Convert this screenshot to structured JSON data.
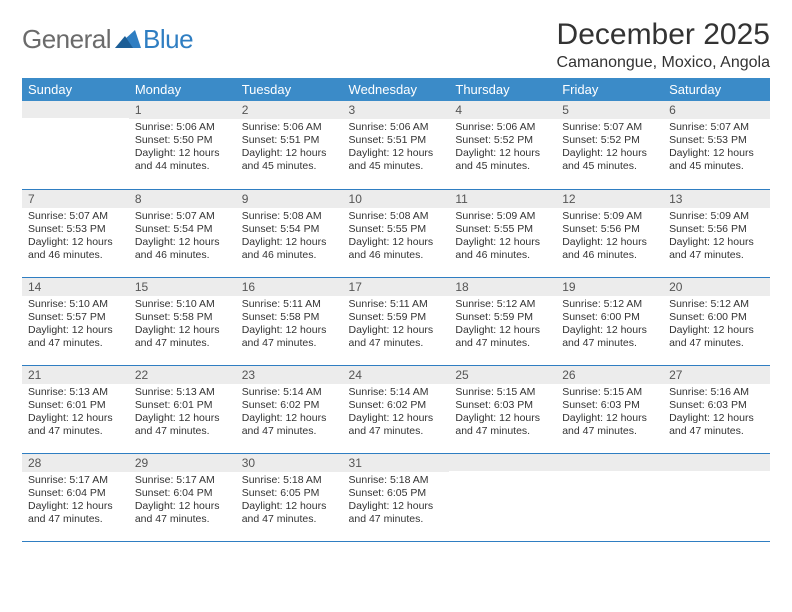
{
  "logo": {
    "general": "General",
    "blue": "Blue"
  },
  "title": "December 2025",
  "location": "Camanongue, Moxico, Angola",
  "colors": {
    "header_bg": "#3b8bc8",
    "accent": "#2f7ec2",
    "daynum_bg": "#ececec",
    "text": "#333333",
    "logo_gray": "#6b6b6b"
  },
  "day_headers": [
    "Sunday",
    "Monday",
    "Tuesday",
    "Wednesday",
    "Thursday",
    "Friday",
    "Saturday"
  ],
  "weeks": [
    [
      null,
      {
        "n": "1",
        "sunrise": "5:06 AM",
        "sunset": "5:50 PM",
        "daylight": "12 hours and 44 minutes."
      },
      {
        "n": "2",
        "sunrise": "5:06 AM",
        "sunset": "5:51 PM",
        "daylight": "12 hours and 45 minutes."
      },
      {
        "n": "3",
        "sunrise": "5:06 AM",
        "sunset": "5:51 PM",
        "daylight": "12 hours and 45 minutes."
      },
      {
        "n": "4",
        "sunrise": "5:06 AM",
        "sunset": "5:52 PM",
        "daylight": "12 hours and 45 minutes."
      },
      {
        "n": "5",
        "sunrise": "5:07 AM",
        "sunset": "5:52 PM",
        "daylight": "12 hours and 45 minutes."
      },
      {
        "n": "6",
        "sunrise": "5:07 AM",
        "sunset": "5:53 PM",
        "daylight": "12 hours and 45 minutes."
      }
    ],
    [
      {
        "n": "7",
        "sunrise": "5:07 AM",
        "sunset": "5:53 PM",
        "daylight": "12 hours and 46 minutes."
      },
      {
        "n": "8",
        "sunrise": "5:07 AM",
        "sunset": "5:54 PM",
        "daylight": "12 hours and 46 minutes."
      },
      {
        "n": "9",
        "sunrise": "5:08 AM",
        "sunset": "5:54 PM",
        "daylight": "12 hours and 46 minutes."
      },
      {
        "n": "10",
        "sunrise": "5:08 AM",
        "sunset": "5:55 PM",
        "daylight": "12 hours and 46 minutes."
      },
      {
        "n": "11",
        "sunrise": "5:09 AM",
        "sunset": "5:55 PM",
        "daylight": "12 hours and 46 minutes."
      },
      {
        "n": "12",
        "sunrise": "5:09 AM",
        "sunset": "5:56 PM",
        "daylight": "12 hours and 46 minutes."
      },
      {
        "n": "13",
        "sunrise": "5:09 AM",
        "sunset": "5:56 PM",
        "daylight": "12 hours and 47 minutes."
      }
    ],
    [
      {
        "n": "14",
        "sunrise": "5:10 AM",
        "sunset": "5:57 PM",
        "daylight": "12 hours and 47 minutes."
      },
      {
        "n": "15",
        "sunrise": "5:10 AM",
        "sunset": "5:58 PM",
        "daylight": "12 hours and 47 minutes."
      },
      {
        "n": "16",
        "sunrise": "5:11 AM",
        "sunset": "5:58 PM",
        "daylight": "12 hours and 47 minutes."
      },
      {
        "n": "17",
        "sunrise": "5:11 AM",
        "sunset": "5:59 PM",
        "daylight": "12 hours and 47 minutes."
      },
      {
        "n": "18",
        "sunrise": "5:12 AM",
        "sunset": "5:59 PM",
        "daylight": "12 hours and 47 minutes."
      },
      {
        "n": "19",
        "sunrise": "5:12 AM",
        "sunset": "6:00 PM",
        "daylight": "12 hours and 47 minutes."
      },
      {
        "n": "20",
        "sunrise": "5:12 AM",
        "sunset": "6:00 PM",
        "daylight": "12 hours and 47 minutes."
      }
    ],
    [
      {
        "n": "21",
        "sunrise": "5:13 AM",
        "sunset": "6:01 PM",
        "daylight": "12 hours and 47 minutes."
      },
      {
        "n": "22",
        "sunrise": "5:13 AM",
        "sunset": "6:01 PM",
        "daylight": "12 hours and 47 minutes."
      },
      {
        "n": "23",
        "sunrise": "5:14 AM",
        "sunset": "6:02 PM",
        "daylight": "12 hours and 47 minutes."
      },
      {
        "n": "24",
        "sunrise": "5:14 AM",
        "sunset": "6:02 PM",
        "daylight": "12 hours and 47 minutes."
      },
      {
        "n": "25",
        "sunrise": "5:15 AM",
        "sunset": "6:03 PM",
        "daylight": "12 hours and 47 minutes."
      },
      {
        "n": "26",
        "sunrise": "5:15 AM",
        "sunset": "6:03 PM",
        "daylight": "12 hours and 47 minutes."
      },
      {
        "n": "27",
        "sunrise": "5:16 AM",
        "sunset": "6:03 PM",
        "daylight": "12 hours and 47 minutes."
      }
    ],
    [
      {
        "n": "28",
        "sunrise": "5:17 AM",
        "sunset": "6:04 PM",
        "daylight": "12 hours and 47 minutes."
      },
      {
        "n": "29",
        "sunrise": "5:17 AM",
        "sunset": "6:04 PM",
        "daylight": "12 hours and 47 minutes."
      },
      {
        "n": "30",
        "sunrise": "5:18 AM",
        "sunset": "6:05 PM",
        "daylight": "12 hours and 47 minutes."
      },
      {
        "n": "31",
        "sunrise": "5:18 AM",
        "sunset": "6:05 PM",
        "daylight": "12 hours and 47 minutes."
      },
      null,
      null,
      null
    ]
  ],
  "labels": {
    "sunrise": "Sunrise:",
    "sunset": "Sunset:",
    "daylight": "Daylight:"
  }
}
